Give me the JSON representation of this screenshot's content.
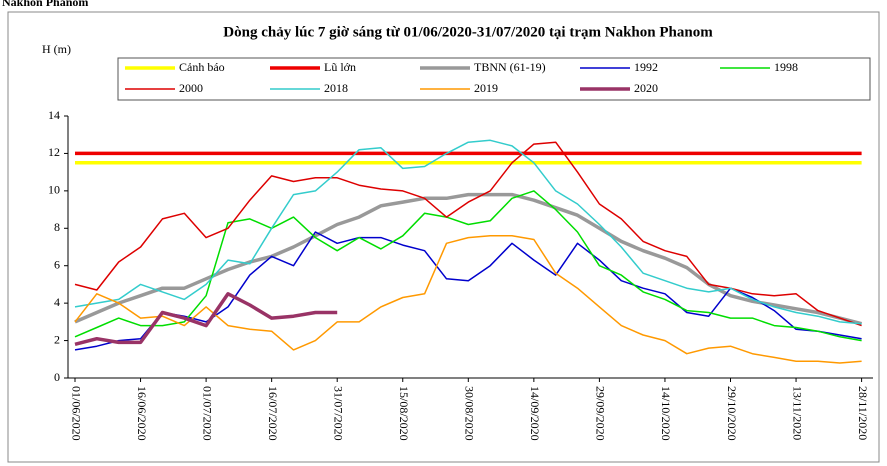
{
  "chart_data": {
    "type": "line",
    "caption": "Nakhon Phanom",
    "title": "Dòng chảy lúc 7 giờ sáng từ 01/06/2020-31/07/2020 tại trạm Nakhon Phanom",
    "y_label": "H (m)",
    "categories": [
      "01/06/2020",
      null,
      null,
      "16/06/2020",
      null,
      null,
      "01/07/2020",
      null,
      null,
      "16/07/2020",
      null,
      null,
      "31/07/2020",
      null,
      null,
      "15/08/2020",
      null,
      null,
      "30/08/2020",
      null,
      null,
      "14/09/2020",
      null,
      null,
      "29/09/2020",
      null,
      null,
      "14/10/2020",
      null,
      null,
      "29/10/2020",
      null,
      null,
      "13/11/2020",
      null,
      null,
      "28/11/2020"
    ],
    "ylim": [
      0,
      14
    ],
    "yticks": [
      0,
      2,
      4,
      6,
      8,
      10,
      12,
      14
    ],
    "series": [
      {
        "name": "Cảnh báo",
        "color": "#ffff00",
        "width": 3.5,
        "values": [
          11.5,
          11.5,
          11.5,
          11.5,
          11.5,
          11.5,
          11.5,
          11.5,
          11.5,
          11.5,
          11.5,
          11.5,
          11.5,
          11.5,
          11.5,
          11.5,
          11.5,
          11.5,
          11.5,
          11.5,
          11.5,
          11.5,
          11.5,
          11.5,
          11.5,
          11.5,
          11.5,
          11.5,
          11.5,
          11.5,
          11.5,
          11.5,
          11.5,
          11.5,
          11.5,
          11.5,
          11.5
        ]
      },
      {
        "name": "Lũ lớn",
        "color": "#ee0000",
        "width": 3.5,
        "values": [
          12,
          12,
          12,
          12,
          12,
          12,
          12,
          12,
          12,
          12,
          12,
          12,
          12,
          12,
          12,
          12,
          12,
          12,
          12,
          12,
          12,
          12,
          12,
          12,
          12,
          12,
          12,
          12,
          12,
          12,
          12,
          12,
          12,
          12,
          12,
          12,
          12
        ]
      },
      {
        "name": "TBNN (61-19)",
        "color": "#999999",
        "width": 3.5,
        "values": [
          3.0,
          3.5,
          4.0,
          4.4,
          4.8,
          4.8,
          5.3,
          5.8,
          6.2,
          6.5,
          7.0,
          7.6,
          8.2,
          8.6,
          9.2,
          9.4,
          9.6,
          9.6,
          9.8,
          9.8,
          9.8,
          9.5,
          9.1,
          8.7,
          8.0,
          7.3,
          6.8,
          6.4,
          5.9,
          5.0,
          4.4,
          4.1,
          3.9,
          3.7,
          3.5,
          3.2,
          2.9
        ]
      },
      {
        "name": "1992",
        "color": "#0000cc",
        "width": 1.5,
        "values": [
          1.5,
          1.7,
          2.0,
          2.1,
          3.5,
          3.3,
          3.0,
          3.8,
          5.5,
          6.5,
          6.0,
          7.8,
          7.2,
          7.5,
          7.5,
          7.1,
          6.8,
          5.3,
          5.2,
          6.0,
          7.2,
          6.3,
          5.5,
          7.2,
          6.3,
          5.2,
          4.8,
          4.5,
          3.5,
          3.3,
          4.8,
          4.3,
          3.6,
          2.6,
          2.5,
          2.3,
          2.1
        ]
      },
      {
        "name": "1998",
        "color": "#00dd00",
        "width": 1.5,
        "values": [
          2.2,
          2.7,
          3.2,
          2.8,
          2.8,
          3.0,
          4.4,
          8.3,
          8.5,
          8.0,
          8.6,
          7.5,
          6.8,
          7.5,
          6.9,
          7.6,
          8.8,
          8.6,
          8.2,
          8.4,
          9.6,
          10.0,
          9.0,
          7.8,
          6.0,
          5.5,
          4.6,
          4.2,
          3.6,
          3.5,
          3.2,
          3.2,
          2.8,
          2.7,
          2.5,
          2.2,
          2.0
        ]
      },
      {
        "name": "2000",
        "color": "#dd0000",
        "width": 1.5,
        "values": [
          5.0,
          4.7,
          6.2,
          7.0,
          8.5,
          8.8,
          7.5,
          8.0,
          9.5,
          10.8,
          10.5,
          10.7,
          10.7,
          10.3,
          10.1,
          10.0,
          9.6,
          8.6,
          9.4,
          10.0,
          11.5,
          12.5,
          12.6,
          11.0,
          9.3,
          8.5,
          7.3,
          6.8,
          6.5,
          5.0,
          4.8,
          4.5,
          4.4,
          4.5,
          3.6,
          3.2,
          2.8
        ]
      },
      {
        "name": "2018",
        "color": "#33cccc",
        "width": 1.5,
        "values": [
          3.8,
          4.0,
          4.2,
          5.0,
          4.6,
          4.2,
          5.0,
          6.3,
          6.1,
          8.0,
          9.8,
          10.0,
          11.0,
          12.2,
          12.3,
          11.2,
          11.3,
          12.0,
          12.6,
          12.7,
          12.4,
          11.5,
          10.0,
          9.3,
          8.2,
          7.0,
          5.6,
          5.2,
          4.8,
          4.6,
          4.8,
          4.2,
          3.8,
          3.5,
          3.3,
          3.0,
          2.9
        ]
      },
      {
        "name": "2019",
        "color": "#ff9900",
        "width": 1.5,
        "values": [
          3.0,
          4.5,
          4.0,
          3.2,
          3.3,
          2.8,
          3.8,
          2.8,
          2.6,
          2.5,
          1.5,
          2.0,
          3.0,
          3.0,
          3.8,
          4.3,
          4.5,
          7.2,
          7.5,
          7.6,
          7.6,
          7.4,
          5.6,
          4.8,
          3.8,
          2.8,
          2.3,
          2.0,
          1.3,
          1.6,
          1.7,
          1.3,
          1.1,
          0.9,
          0.9,
          0.8,
          0.9
        ]
      },
      {
        "name": "2020",
        "color": "#993366",
        "width": 3.5,
        "values": [
          1.8,
          2.1,
          1.9,
          1.9,
          3.5,
          3.2,
          2.8,
          4.5,
          3.9,
          3.2,
          3.3,
          3.5,
          3.5,
          null,
          null,
          null,
          null,
          null,
          null,
          null,
          null,
          null,
          null,
          null,
          null,
          null,
          null,
          null,
          null,
          null,
          null,
          null,
          null,
          null,
          null,
          null,
          null
        ]
      }
    ]
  }
}
